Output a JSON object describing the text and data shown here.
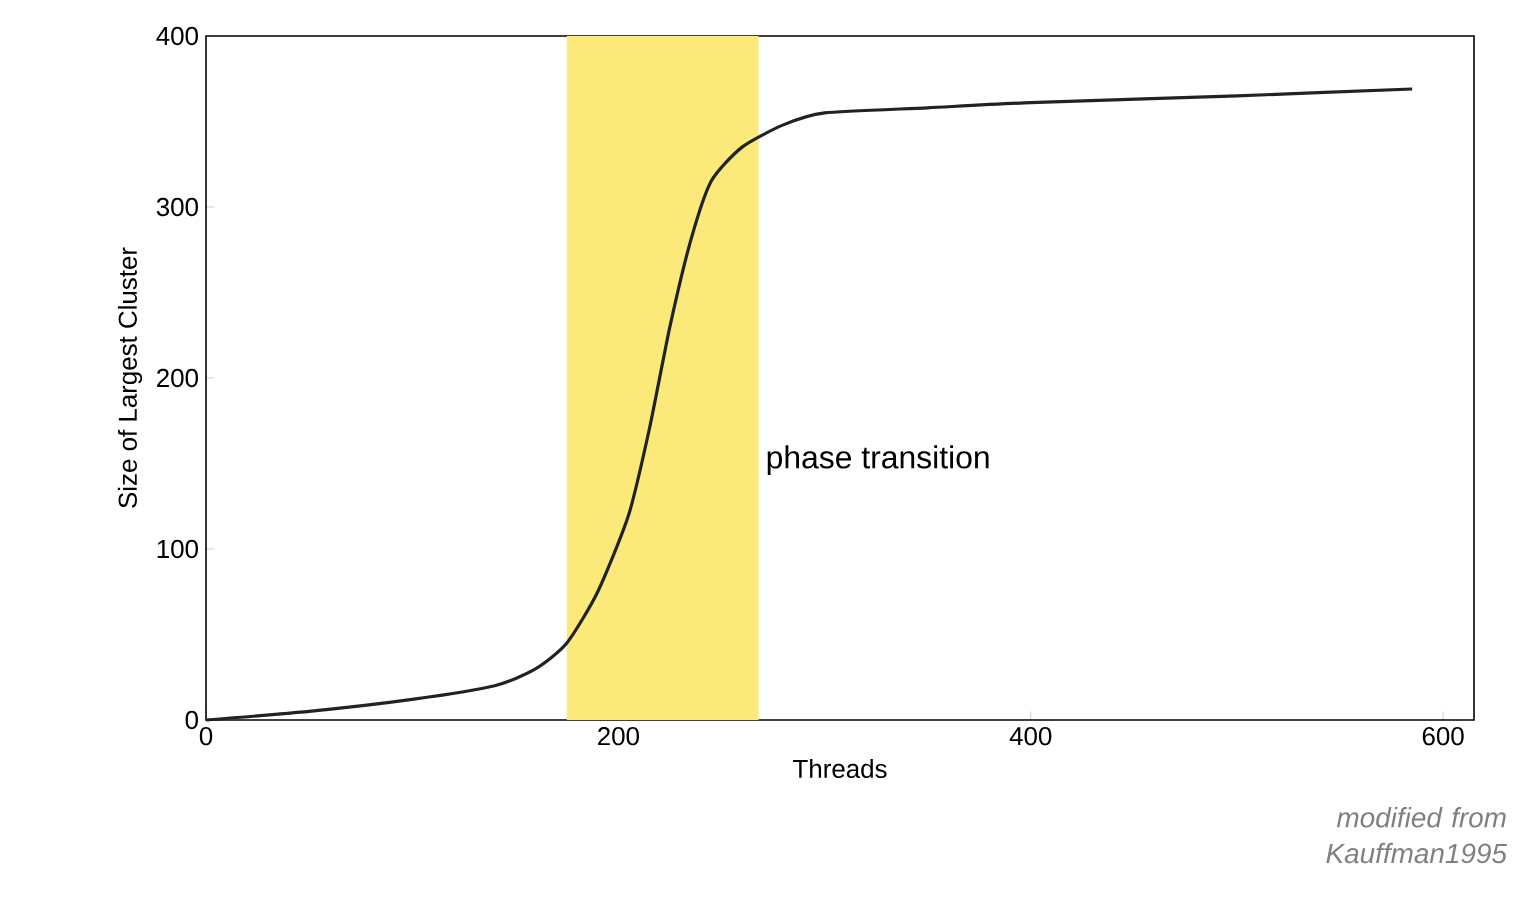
{
  "chart_data": {
    "type": "line",
    "xlabel": "Threads",
    "ylabel": "Size of Largest Cluster",
    "x": [
      0,
      50,
      100,
      140,
      160,
      175,
      190,
      205,
      215,
      225,
      235,
      245,
      260,
      280,
      300,
      350,
      400,
      500,
      585
    ],
    "series": [
      {
        "color": "#222222",
        "values": [
          0,
          5,
          12,
          20,
          30,
          45,
          75,
          120,
          170,
          230,
          280,
          315,
          335,
          348,
          355,
          358,
          361,
          365,
          369
        ]
      }
    ],
    "xlim": [
      0,
      615
    ],
    "ylim": [
      0,
      400
    ],
    "xticks": [
      0,
      200,
      400,
      600
    ],
    "yticks": [
      0,
      100,
      200,
      300,
      400
    ],
    "bands": [
      {
        "axis": "x",
        "from": 175,
        "to": 268,
        "label": "phase transition",
        "color": "#fbe97a"
      }
    ],
    "annotations": [
      "modified from Kauffman1995"
    ],
    "marker": "none",
    "line_style": "solid"
  }
}
